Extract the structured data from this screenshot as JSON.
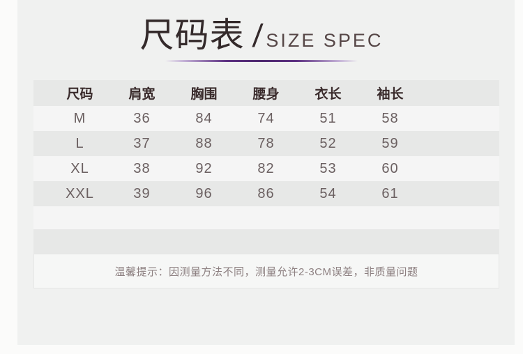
{
  "title": {
    "cn": "尺码表",
    "slash": "/",
    "en": "SIZE SPEC"
  },
  "table": {
    "headers": [
      "尺码",
      "肩宽",
      "胸围",
      "腰身",
      "衣长",
      "袖长"
    ],
    "rows": [
      [
        "M",
        "36",
        "84",
        "74",
        "51",
        "58"
      ],
      [
        "L",
        "37",
        "88",
        "78",
        "52",
        "59"
      ],
      [
        "XL",
        "38",
        "92",
        "82",
        "53",
        "60"
      ],
      [
        "XXL",
        "39",
        "96",
        "86",
        "54",
        "61"
      ]
    ]
  },
  "tip": {
    "text": "温馨提示：因测量方法不同，测量允许2-3CM误差，非质量问题"
  },
  "colors": {
    "accent_purple": "#4f2a70",
    "panel_bg": "#f0f1f0",
    "edge_bg": "#fbfbfa",
    "row_gray": "#e7e8e7",
    "row_light": "#f5f5f5",
    "tip_bg": "#f6f7f6",
    "title_text": "#342a2b",
    "subtitle_text": "#564747",
    "header_text": "#3a2b2c",
    "data_text": "#6b6061",
    "tip_text": "#8d8081"
  }
}
